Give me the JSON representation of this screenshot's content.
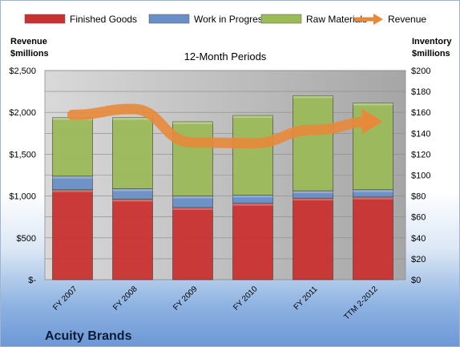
{
  "chart_data": {
    "type": "bar",
    "subtitle": "12-Month Periods",
    "company": "Acuity Brands",
    "categories": [
      "FY 2007",
      "FY 2008",
      "FY 2009",
      "FY 2010",
      "FY 2011",
      "TTM 2-2012"
    ],
    "series": [
      {
        "name": "Finished Goods",
        "axis": "right",
        "color": "#c8312f",
        "values": [
          86,
          77,
          69,
          73,
          78,
          79
        ]
      },
      {
        "name": "Work in Progress",
        "axis": "right",
        "color": "#6a8fc6",
        "values": [
          13,
          10,
          11,
          8,
          7,
          7
        ]
      },
      {
        "name": "Raw Materials",
        "axis": "right",
        "color": "#9bbb59",
        "values": [
          56,
          68,
          71,
          76,
          91,
          83
        ]
      },
      {
        "name": "Revenue",
        "axis": "left",
        "type": "line",
        "color": "#e8893a",
        "values": [
          1970,
          2040,
          1640,
          1630,
          1790,
          1890
        ]
      }
    ],
    "left_axis": {
      "label_line1": "Revenue",
      "label_line2": "$millions",
      "ylim": [
        0,
        2500
      ],
      "ticks": [
        0,
        500,
        1000,
        1500,
        2000,
        2500
      ],
      "tick_labels": [
        "$-",
        "$500",
        "$1,000",
        "$1,500",
        "$2,000",
        "$2,500"
      ]
    },
    "right_axis": {
      "label_line1": "Inventory",
      "label_line2": "$millions",
      "ylim": [
        0,
        200
      ],
      "ticks": [
        0,
        20,
        40,
        60,
        80,
        100,
        120,
        140,
        160,
        180,
        200
      ],
      "tick_labels": [
        "$0",
        "$20",
        "$40",
        "$60",
        "$80",
        "$100",
        "$120",
        "$140",
        "$160",
        "$180",
        "$200"
      ]
    },
    "grid": true,
    "legend_position": "top"
  }
}
